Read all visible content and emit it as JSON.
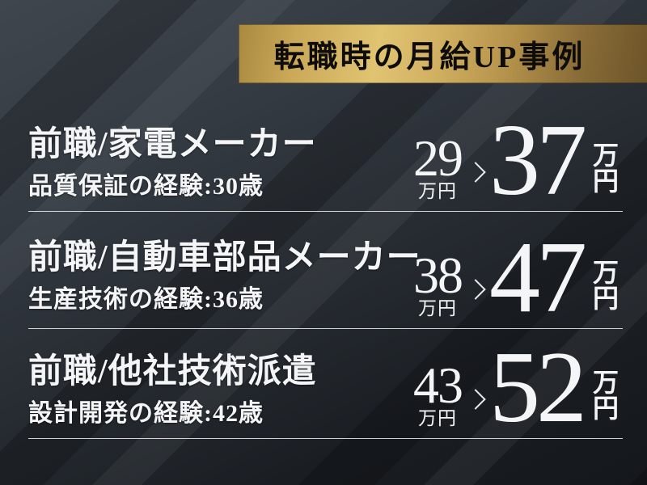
{
  "banner": {
    "title": "転職時の月給UP事例"
  },
  "cases": [
    {
      "previous_job": "前職/家電メーカー",
      "experience": "品質保証の経験:30歳",
      "before_amount": "29",
      "before_unit": "万円",
      "after_amount": "37",
      "after_unit_top": "万",
      "after_unit_bottom": "円"
    },
    {
      "previous_job": "前職/自動車部品メーカー",
      "experience": "生産技術の経験:36歳",
      "before_amount": "38",
      "before_unit": "万円",
      "after_amount": "47",
      "after_unit_top": "万",
      "after_unit_bottom": "円"
    },
    {
      "previous_job": "前職/他社技術派遣",
      "experience": "設計開発の経験:42歳",
      "before_amount": "43",
      "before_unit": "万円",
      "after_amount": "52",
      "after_unit_top": "万",
      "after_unit_bottom": "円"
    }
  ],
  "icons": {
    "arrow": "chevron-right"
  },
  "colors": {
    "gold_light": "#e0c472",
    "gold_dark": "#6b5328",
    "background_light": "#40464e",
    "background_dark": "#14171b",
    "text_white": "#f4f5f6",
    "banner_text": "#0e0d0b",
    "divider": "#e9ebee"
  }
}
